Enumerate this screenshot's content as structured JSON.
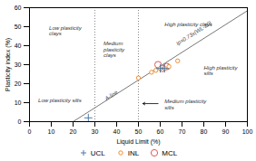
{
  "chart_data": {
    "type": "scatter",
    "xlabel": "Liquid Limit (%)",
    "ylabel": "Plasticity index (%)",
    "xlim": [
      0,
      100
    ],
    "ylim": [
      0,
      60
    ],
    "xticks": [
      0,
      10,
      20,
      30,
      40,
      50,
      60,
      70,
      80,
      90,
      100
    ],
    "yticks": [
      0,
      10,
      20,
      30,
      40,
      50,
      60
    ],
    "grid": false,
    "legend": "bottom",
    "series": [
      {
        "name": "UCL",
        "marker": "plus",
        "x": [
          27,
          60,
          62
        ],
        "values": [
          2,
          28,
          28
        ]
      },
      {
        "name": "INL",
        "marker": "circle",
        "x": [
          50,
          56,
          58,
          60,
          62,
          64,
          68
        ],
        "values": [
          23,
          26,
          27,
          28,
          28,
          29,
          32
        ]
      },
      {
        "name": "MCL",
        "marker": "circle",
        "x": [
          59,
          61,
          63
        ],
        "values": [
          30,
          28,
          29
        ]
      }
    ],
    "a_line": {
      "x": [
        20,
        100
      ],
      "values": [
        0,
        58.4
      ],
      "label": {
        "text": "A-line",
        "x": 38,
        "y": 13
      },
      "equation": {
        "text": "Ip=0.73x(WL-20)",
        "x": 68,
        "y": 40
      }
    },
    "reference_lines": [
      {
        "x": 30,
        "line_style": "dotted"
      },
      {
        "x": 50,
        "line_style": "dotted"
      }
    ],
    "annotations": [
      {
        "text": "Low plasticity\nclays",
        "x": 9,
        "y": 48
      },
      {
        "text": "Medium\nplasticity\nclays",
        "x": 34,
        "y": 38
      },
      {
        "text": "High plasticity clays",
        "x": 62,
        "y": 51
      },
      {
        "text": "Low plasticity silts",
        "x": 4,
        "y": 11
      },
      {
        "text": "Medium plasticity\nsilts",
        "x": 62,
        "y": 9
      },
      {
        "text": "High plasticity\nsilts",
        "x": 80,
        "y": 27
      }
    ],
    "arrows": [
      {
        "x1": 59,
        "y1": 9.5,
        "x2": 52,
        "y2": 9.5
      }
    ]
  }
}
